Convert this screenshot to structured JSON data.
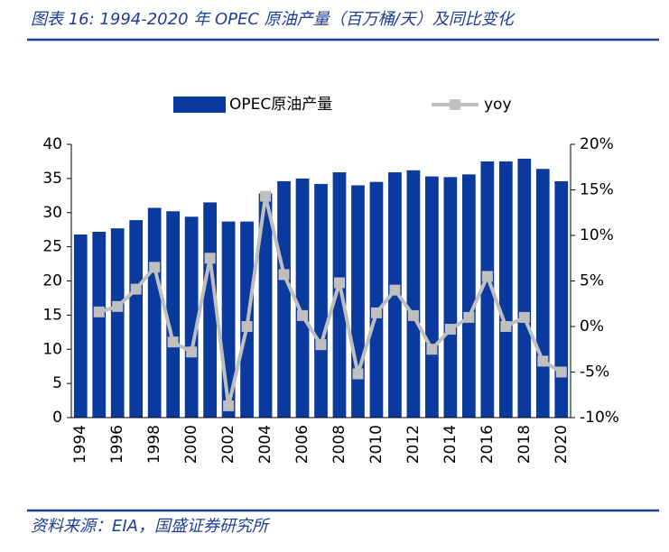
{
  "header": {
    "title": "图表 16:  1994-2020 年 OPEC 原油产量（百万桶/天）及同比变化"
  },
  "chart_data": {
    "type": "bar",
    "categories": [
      "1994",
      null,
      "1996",
      null,
      "1998",
      null,
      "2000",
      null,
      "2002",
      null,
      "2004",
      null,
      "2006",
      null,
      "2008",
      null,
      "2010",
      null,
      "2012",
      null,
      "2014",
      null,
      "2016",
      null,
      "2018",
      null,
      "2020"
    ],
    "series": [
      {
        "name": "OPEC原油产量",
        "type": "bar",
        "color": "#0b3a9e",
        "values": [
          26.8,
          27.2,
          27.7,
          28.9,
          30.7,
          30.2,
          29.4,
          31.5,
          28.7,
          28.7,
          32.8,
          34.6,
          35.0,
          34.2,
          35.9,
          34.0,
          34.5,
          35.9,
          36.2,
          35.3,
          35.2,
          35.6,
          37.5,
          37.5,
          37.9,
          36.4,
          34.6
        ]
      },
      {
        "name": "yoy",
        "type": "line",
        "axis": "y2",
        "color": "#bfbfbf",
        "values": [
          null,
          1.6,
          2.2,
          4.1,
          6.5,
          -1.7,
          -2.8,
          7.5,
          -8.7,
          0.0,
          14.3,
          5.7,
          1.2,
          -2.0,
          4.8,
          -5.2,
          1.5,
          4.0,
          1.2,
          -2.5,
          -0.3,
          1.0,
          5.5,
          0.0,
          1.0,
          -3.8,
          -5.0
        ]
      }
    ],
    "ylim": [
      0,
      40
    ],
    "yticks": [
      0,
      5,
      10,
      15,
      20,
      25,
      30,
      35,
      40
    ],
    "y2lim": [
      -10,
      20
    ],
    "y2ticks": [
      {
        "value": -10,
        "label": "-10%"
      },
      {
        "value": -5,
        "label": "-5%"
      },
      {
        "value": 0,
        "label": "0%"
      },
      {
        "value": 5,
        "label": "5%"
      },
      {
        "value": 10,
        "label": "10%"
      },
      {
        "value": 15,
        "label": "15%"
      },
      {
        "value": 20,
        "label": "20%"
      }
    ],
    "legend": "top"
  },
  "footer": {
    "source": "资料来源：EIA，国盛证券研究所"
  }
}
